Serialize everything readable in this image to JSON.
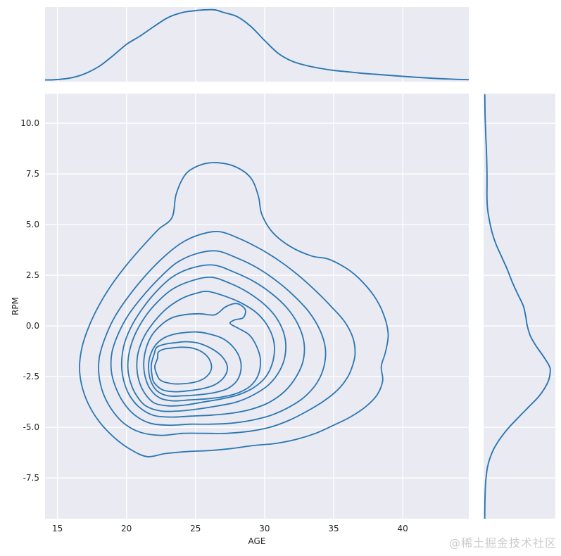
{
  "watermark": "@稀土掘金技术社区",
  "colors": {
    "line": "#2b77b2",
    "panel_bg": "#eaeaf2",
    "grid": "#ffffff",
    "tick_text": "#262626",
    "watermark_text": "#cbcbcb",
    "figure_bg": "#ffffff"
  },
  "chart_data": {
    "type": "kde-jointplot",
    "title": "",
    "xlabel": "AGE",
    "ylabel": "RPM",
    "x_range": [
      14.1,
      44.79
    ],
    "y_range": [
      -9.55,
      11.46
    ],
    "x_ticks": [
      15,
      20,
      25,
      30,
      35,
      40
    ],
    "y_ticks": [
      "10.0",
      "7.5",
      "5.0",
      "2.5",
      "0.0",
      "-2.5",
      "-5.0",
      "-7.5"
    ],
    "grid": true,
    "legend": false,
    "density_center_estimate": {
      "age": 23.8,
      "rpm": -1.8
    },
    "contour_levels": 10,
    "marginal_top": {
      "type": "kde",
      "axis": "AGE",
      "points": [
        [
          14.1,
          0.004
        ],
        [
          15,
          0.01
        ],
        [
          16,
          0.034
        ],
        [
          17,
          0.094
        ],
        [
          18,
          0.195
        ],
        [
          19,
          0.345
        ],
        [
          20,
          0.51
        ],
        [
          21,
          0.63
        ],
        [
          22,
          0.765
        ],
        [
          23,
          0.89
        ],
        [
          24,
          0.96
        ],
        [
          24.8,
          0.985
        ],
        [
          25.6,
          1.0
        ],
        [
          26.4,
          1.0
        ],
        [
          27,
          0.965
        ],
        [
          28,
          0.905
        ],
        [
          29,
          0.765
        ],
        [
          30,
          0.565
        ],
        [
          31,
          0.38
        ],
        [
          32,
          0.27
        ],
        [
          33,
          0.21
        ],
        [
          34,
          0.17
        ],
        [
          35,
          0.14
        ],
        [
          36,
          0.12
        ],
        [
          37,
          0.1
        ],
        [
          38,
          0.085
        ],
        [
          39,
          0.07
        ],
        [
          40,
          0.055
        ],
        [
          41,
          0.042
        ],
        [
          42,
          0.03
        ],
        [
          43,
          0.02
        ],
        [
          44,
          0.012
        ],
        [
          44.79,
          0.008
        ]
      ]
    },
    "marginal_right": {
      "type": "kde",
      "axis": "RPM",
      "points": [
        [
          11.4,
          0.002
        ],
        [
          10.5,
          0.006
        ],
        [
          10,
          0.01
        ],
        [
          9.3,
          0.018
        ],
        [
          8.7,
          0.026
        ],
        [
          8,
          0.032
        ],
        [
          7.5,
          0.035
        ],
        [
          7,
          0.035
        ],
        [
          6.4,
          0.034
        ],
        [
          5.8,
          0.042
        ],
        [
          5.2,
          0.07
        ],
        [
          4.6,
          0.11
        ],
        [
          4,
          0.17
        ],
        [
          3.4,
          0.25
        ],
        [
          2.8,
          0.33
        ],
        [
          2.2,
          0.4
        ],
        [
          1.6,
          0.48
        ],
        [
          1,
          0.565
        ],
        [
          0.5,
          0.6
        ],
        [
          0,
          0.625
        ],
        [
          -0.5,
          0.67
        ],
        [
          -1,
          0.755
        ],
        [
          -1.5,
          0.86
        ],
        [
          -2,
          0.95
        ],
        [
          -2.3,
          0.96
        ],
        [
          -2.7,
          0.935
        ],
        [
          -3.1,
          0.875
        ],
        [
          -3.5,
          0.79
        ],
        [
          -4,
          0.645
        ],
        [
          -4.5,
          0.5
        ],
        [
          -5,
          0.36
        ],
        [
          -5.5,
          0.24
        ],
        [
          -6,
          0.145
        ],
        [
          -6.5,
          0.08
        ],
        [
          -7,
          0.04
        ],
        [
          -7.6,
          0.018
        ],
        [
          -8.2,
          0.008
        ],
        [
          -9,
          0.003
        ],
        [
          -9.55,
          0.002
        ]
      ]
    },
    "contours": [
      [
        [
          23.3,
          5.35
        ],
        [
          23.6,
          6.5
        ],
        [
          24.3,
          7.5
        ],
        [
          25.4,
          7.95
        ],
        [
          26.6,
          8.05
        ],
        [
          27.9,
          7.85
        ],
        [
          29.0,
          7.3
        ],
        [
          29.55,
          6.4
        ],
        [
          29.8,
          5.5
        ],
        [
          30.6,
          4.6
        ],
        [
          31.9,
          3.9
        ],
        [
          33.4,
          3.45
        ],
        [
          34.6,
          3.3
        ],
        [
          35.9,
          2.85
        ],
        [
          36.9,
          2.3
        ],
        [
          37.9,
          1.5
        ],
        [
          38.6,
          0.6
        ],
        [
          38.95,
          -0.4
        ],
        [
          38.75,
          -1.3
        ],
        [
          38.45,
          -2.0
        ],
        [
          38.55,
          -2.7
        ],
        [
          38.15,
          -3.4
        ],
        [
          37.3,
          -4.0
        ],
        [
          36.2,
          -4.5
        ],
        [
          35.0,
          -4.9
        ],
        [
          33.7,
          -5.3
        ],
        [
          32.3,
          -5.6
        ],
        [
          30.8,
          -5.8
        ],
        [
          29.2,
          -5.9
        ],
        [
          27.6,
          -6.05
        ],
        [
          26.0,
          -6.15
        ],
        [
          24.4,
          -6.2
        ],
        [
          22.8,
          -6.3
        ],
        [
          21.5,
          -6.45
        ],
        [
          20.3,
          -6.1
        ],
        [
          19.1,
          -5.5
        ],
        [
          18.0,
          -4.7
        ],
        [
          17.2,
          -3.8
        ],
        [
          16.75,
          -2.9
        ],
        [
          16.6,
          -2.0
        ],
        [
          16.8,
          -1.0
        ],
        [
          17.3,
          0.0
        ],
        [
          18.0,
          1.0
        ],
        [
          18.9,
          2.0
        ],
        [
          20.0,
          3.0
        ],
        [
          21.2,
          3.95
        ],
        [
          22.3,
          4.75
        ]
      ],
      [
        [
          26.7,
          4.65
        ],
        [
          28.2,
          4.3
        ],
        [
          29.8,
          3.75
        ],
        [
          31.3,
          3.1
        ],
        [
          32.7,
          2.35
        ],
        [
          33.9,
          1.6
        ],
        [
          34.9,
          0.9
        ],
        [
          35.8,
          0.2
        ],
        [
          36.4,
          -0.6
        ],
        [
          36.55,
          -1.4
        ],
        [
          36.3,
          -2.1
        ],
        [
          35.95,
          -2.6
        ],
        [
          35.3,
          -3.15
        ],
        [
          34.3,
          -3.7
        ],
        [
          33.1,
          -4.2
        ],
        [
          31.8,
          -4.65
        ],
        [
          30.4,
          -5.0
        ],
        [
          28.9,
          -5.2
        ],
        [
          27.3,
          -5.3
        ],
        [
          25.7,
          -5.3
        ],
        [
          24.1,
          -5.3
        ],
        [
          22.5,
          -5.4
        ],
        [
          21.0,
          -5.25
        ],
        [
          19.8,
          -4.8
        ],
        [
          18.9,
          -4.1
        ],
        [
          18.3,
          -3.3
        ],
        [
          18.0,
          -2.4
        ],
        [
          18.05,
          -1.5
        ],
        [
          18.5,
          -0.5
        ],
        [
          19.2,
          0.5
        ],
        [
          20.2,
          1.5
        ],
        [
          21.4,
          2.5
        ],
        [
          22.7,
          3.4
        ],
        [
          24.0,
          4.1
        ],
        [
          25.3,
          4.5
        ]
      ],
      [
        [
          26.5,
          3.7
        ],
        [
          28.0,
          3.35
        ],
        [
          29.5,
          2.85
        ],
        [
          30.9,
          2.2
        ],
        [
          32.1,
          1.5
        ],
        [
          33.2,
          0.7
        ],
        [
          34.0,
          -0.2
        ],
        [
          34.4,
          -1.1
        ],
        [
          34.3,
          -2.0
        ],
        [
          33.8,
          -2.8
        ],
        [
          32.9,
          -3.5
        ],
        [
          31.8,
          -4.0
        ],
        [
          30.5,
          -4.4
        ],
        [
          29.1,
          -4.65
        ],
        [
          27.6,
          -4.8
        ],
        [
          26.1,
          -4.85
        ],
        [
          24.6,
          -4.85
        ],
        [
          23.1,
          -4.9
        ],
        [
          21.7,
          -4.8
        ],
        [
          20.6,
          -4.4
        ],
        [
          19.8,
          -3.8
        ],
        [
          19.2,
          -3.0
        ],
        [
          18.9,
          -2.2
        ],
        [
          18.95,
          -1.3
        ],
        [
          19.4,
          -0.4
        ],
        [
          20.1,
          0.5
        ],
        [
          21.1,
          1.4
        ],
        [
          22.3,
          2.3
        ],
        [
          23.6,
          3.1
        ],
        [
          25.0,
          3.55
        ]
      ],
      [
        [
          26.3,
          3.0
        ],
        [
          27.8,
          2.65
        ],
        [
          29.2,
          2.2
        ],
        [
          30.5,
          1.6
        ],
        [
          31.6,
          0.9
        ],
        [
          32.4,
          0.1
        ],
        [
          32.85,
          -0.8
        ],
        [
          32.8,
          -1.7
        ],
        [
          32.3,
          -2.5
        ],
        [
          31.5,
          -3.2
        ],
        [
          30.4,
          -3.75
        ],
        [
          29.1,
          -4.1
        ],
        [
          27.7,
          -4.3
        ],
        [
          26.2,
          -4.4
        ],
        [
          24.7,
          -4.45
        ],
        [
          23.2,
          -4.5
        ],
        [
          21.9,
          -4.4
        ],
        [
          20.9,
          -4.0
        ],
        [
          20.2,
          -3.4
        ],
        [
          19.8,
          -2.7
        ],
        [
          19.65,
          -1.9
        ],
        [
          19.8,
          -1.0
        ],
        [
          20.3,
          -0.1
        ],
        [
          21.1,
          0.8
        ],
        [
          22.1,
          1.65
        ],
        [
          23.3,
          2.4
        ],
        [
          24.7,
          2.85
        ]
      ],
      [
        [
          26.1,
          2.4
        ],
        [
          27.5,
          2.1
        ],
        [
          28.8,
          1.65
        ],
        [
          30.0,
          1.05
        ],
        [
          30.9,
          0.35
        ],
        [
          31.45,
          -0.5
        ],
        [
          31.5,
          -1.4
        ],
        [
          31.1,
          -2.2
        ],
        [
          30.3,
          -2.9
        ],
        [
          29.2,
          -3.4
        ],
        [
          28.0,
          -3.75
        ],
        [
          26.6,
          -3.95
        ],
        [
          25.2,
          -4.1
        ],
        [
          23.8,
          -4.2
        ],
        [
          22.5,
          -4.2
        ],
        [
          21.4,
          -3.95
        ],
        [
          20.7,
          -3.4
        ],
        [
          20.3,
          -2.8
        ],
        [
          20.1,
          -2.1
        ],
        [
          20.2,
          -1.3
        ],
        [
          20.6,
          -0.45
        ],
        [
          21.3,
          0.4
        ],
        [
          22.2,
          1.15
        ],
        [
          23.3,
          1.8
        ],
        [
          24.6,
          2.2
        ]
      ],
      [
        [
          25.9,
          1.7
        ],
        [
          27.2,
          1.45
        ],
        [
          28.4,
          1.1
        ],
        [
          29.5,
          0.6
        ],
        [
          30.3,
          -0.1
        ],
        [
          30.7,
          -0.9
        ],
        [
          30.6,
          -1.75
        ],
        [
          30.1,
          -2.5
        ],
        [
          29.2,
          -3.05
        ],
        [
          28.1,
          -3.4
        ],
        [
          26.9,
          -3.6
        ],
        [
          25.6,
          -3.75
        ],
        [
          24.3,
          -3.9
        ],
        [
          23.1,
          -3.95
        ],
        [
          22.0,
          -3.8
        ],
        [
          21.3,
          -3.3
        ],
        [
          20.9,
          -2.7
        ],
        [
          20.75,
          -2.0
        ],
        [
          20.85,
          -1.3
        ],
        [
          21.3,
          -0.5
        ],
        [
          22.0,
          0.2
        ],
        [
          22.9,
          0.85
        ],
        [
          24.0,
          1.35
        ],
        [
          25.0,
          1.6
        ]
      ],
      [
        [
          23.3,
          0.4
        ],
        [
          24.2,
          0.55
        ],
        [
          25.3,
          0.6
        ],
        [
          26.4,
          0.55
        ],
        [
          27.2,
          0.95
        ],
        [
          28.0,
          1.1
        ],
        [
          28.6,
          0.8
        ],
        [
          28.45,
          0.4
        ],
        [
          27.85,
          0.3
        ],
        [
          27.5,
          0.12
        ],
        [
          28.1,
          -0.12
        ],
        [
          28.9,
          -0.45
        ],
        [
          29.45,
          -1.05
        ],
        [
          29.7,
          -1.7
        ],
        [
          29.55,
          -2.4
        ],
        [
          29.0,
          -2.95
        ],
        [
          28.1,
          -3.3
        ],
        [
          27.0,
          -3.5
        ],
        [
          25.8,
          -3.6
        ],
        [
          24.6,
          -3.65
        ],
        [
          23.4,
          -3.7
        ],
        [
          22.4,
          -3.55
        ],
        [
          21.7,
          -3.1
        ],
        [
          21.35,
          -2.5
        ],
        [
          21.25,
          -1.85
        ],
        [
          21.4,
          -1.15
        ],
        [
          21.85,
          -0.45
        ],
        [
          22.6,
          0.1
        ]
      ],
      [
        [
          23.4,
          -0.42
        ],
        [
          24.2,
          -0.33
        ],
        [
          25.1,
          -0.3
        ],
        [
          26.0,
          -0.4
        ],
        [
          26.9,
          -0.6
        ],
        [
          27.6,
          -0.95
        ],
        [
          28.15,
          -1.5
        ],
        [
          28.3,
          -2.1
        ],
        [
          28.0,
          -2.7
        ],
        [
          27.3,
          -3.1
        ],
        [
          26.3,
          -3.3
        ],
        [
          25.2,
          -3.4
        ],
        [
          24.1,
          -3.45
        ],
        [
          23.0,
          -3.45
        ],
        [
          22.2,
          -3.2
        ],
        [
          21.75,
          -2.7
        ],
        [
          21.6,
          -2.1
        ],
        [
          21.7,
          -1.5
        ],
        [
          22.1,
          -0.95
        ],
        [
          22.7,
          -0.6
        ]
      ],
      [
        [
          23.4,
          -0.84
        ],
        [
          24.3,
          -0.78
        ],
        [
          25.2,
          -0.85
        ],
        [
          26.1,
          -1.1
        ],
        [
          26.9,
          -1.5
        ],
        [
          27.3,
          -2.0
        ],
        [
          27.1,
          -2.5
        ],
        [
          26.4,
          -2.9
        ],
        [
          25.5,
          -3.1
        ],
        [
          24.5,
          -3.2
        ],
        [
          23.5,
          -3.25
        ],
        [
          22.6,
          -3.15
        ],
        [
          22.0,
          -2.8
        ],
        [
          21.85,
          -2.45
        ],
        [
          21.8,
          -1.9
        ],
        [
          22.0,
          -1.4
        ],
        [
          22.2,
          -1.05
        ],
        [
          22.8,
          -0.9
        ]
      ],
      [
        [
          23.2,
          -1.1
        ],
        [
          24.0,
          -1.05
        ],
        [
          24.8,
          -1.1
        ],
        [
          25.5,
          -1.3
        ],
        [
          26.0,
          -1.65
        ],
        [
          26.15,
          -2.1
        ],
        [
          25.8,
          -2.5
        ],
        [
          25.1,
          -2.75
        ],
        [
          24.2,
          -2.85
        ],
        [
          23.3,
          -2.85
        ],
        [
          22.5,
          -2.7
        ],
        [
          22.2,
          -2.4
        ],
        [
          22.05,
          -2.0
        ],
        [
          22.25,
          -1.6
        ],
        [
          22.3,
          -1.3
        ],
        [
          22.7,
          -1.15
        ]
      ]
    ]
  }
}
